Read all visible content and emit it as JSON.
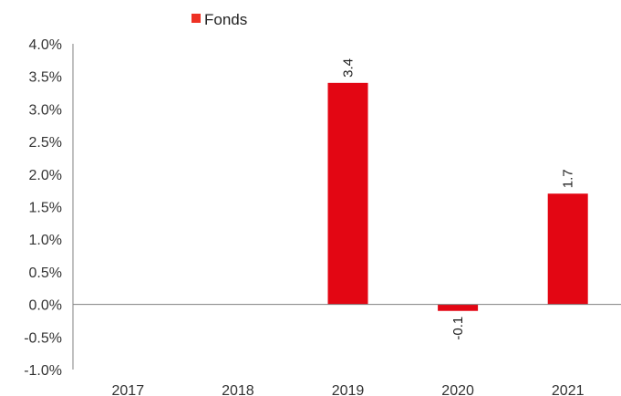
{
  "chart_data": {
    "type": "bar",
    "categories": [
      "2017",
      "2018",
      "2019",
      "2020",
      "2021"
    ],
    "series": [
      {
        "name": "Fonds",
        "values": [
          null,
          null,
          3.4,
          -0.1,
          1.7
        ],
        "labels": [
          "",
          "",
          "3.4",
          "-0.1",
          "1.7"
        ],
        "color": "#e30613"
      }
    ],
    "yticks": [
      -1.0,
      -0.5,
      0.0,
      0.5,
      1.0,
      1.5,
      2.0,
      2.5,
      3.0,
      3.5,
      4.0
    ],
    "ytick_labels": [
      "-1.0%",
      "-0.5%",
      "0.0%",
      "0.5%",
      "1.0%",
      "1.5%",
      "2.0%",
      "2.5%",
      "3.0%",
      "3.5%",
      "4.0%"
    ],
    "ylim": [
      -1.0,
      4.0
    ],
    "legend_position": "top-left",
    "legend_color": "#ee3124",
    "grid": false,
    "axis_color": "#808080"
  }
}
